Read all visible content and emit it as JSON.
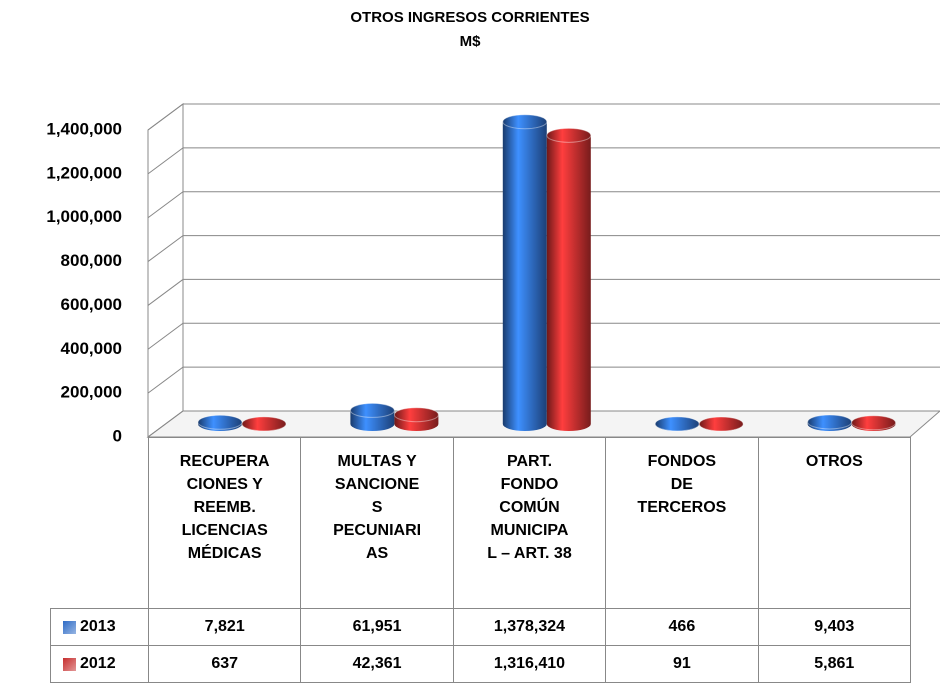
{
  "chart_data": {
    "type": "bar3d",
    "title": "OTROS INGRESOS CORRIENTES",
    "subtitle": "M$",
    "categories": [
      "RECUPERA\nCIONES Y\nREEMB.\nLICENCIAS\nMÉDICAS",
      "MULTAS Y\nSANCIONE\nS\nPECUNIARI\nAS",
      "PART.\nFONDO\nCOMÚN\nMUNICIPA\nL – ART. 38",
      "FONDOS\nDE\nTERCEROS",
      "OTROS"
    ],
    "series": [
      {
        "name": "2013",
        "color": "#2e6bc6",
        "values": [
          7821,
          61951,
          1378324,
          466,
          9403
        ],
        "value_labels": [
          "7,821",
          "61,951",
          "1,378,324",
          "466",
          "9,403"
        ]
      },
      {
        "name": "2012",
        "color": "#c62e2e",
        "values": [
          637,
          42361,
          1316410,
          91,
          5861
        ],
        "value_labels": [
          "637",
          "42,361",
          "1,316,410",
          "91",
          "5,861"
        ]
      }
    ],
    "ylim": [
      0,
      1400000
    ],
    "yticks": [
      0,
      {
        "value": 200000,
        "label": "200,000"
      },
      {
        "value": 400000,
        "label": "400,000"
      },
      {
        "value": 600000,
        "label": "600,000"
      },
      {
        "value": 800000,
        "label": "800,000"
      },
      {
        "value": 1000000,
        "label": "1,000,000"
      },
      {
        "value": 1200000,
        "label": "1,200,000"
      },
      {
        "value": 1400000,
        "label": "1,400,000"
      }
    ],
    "grid": true
  }
}
